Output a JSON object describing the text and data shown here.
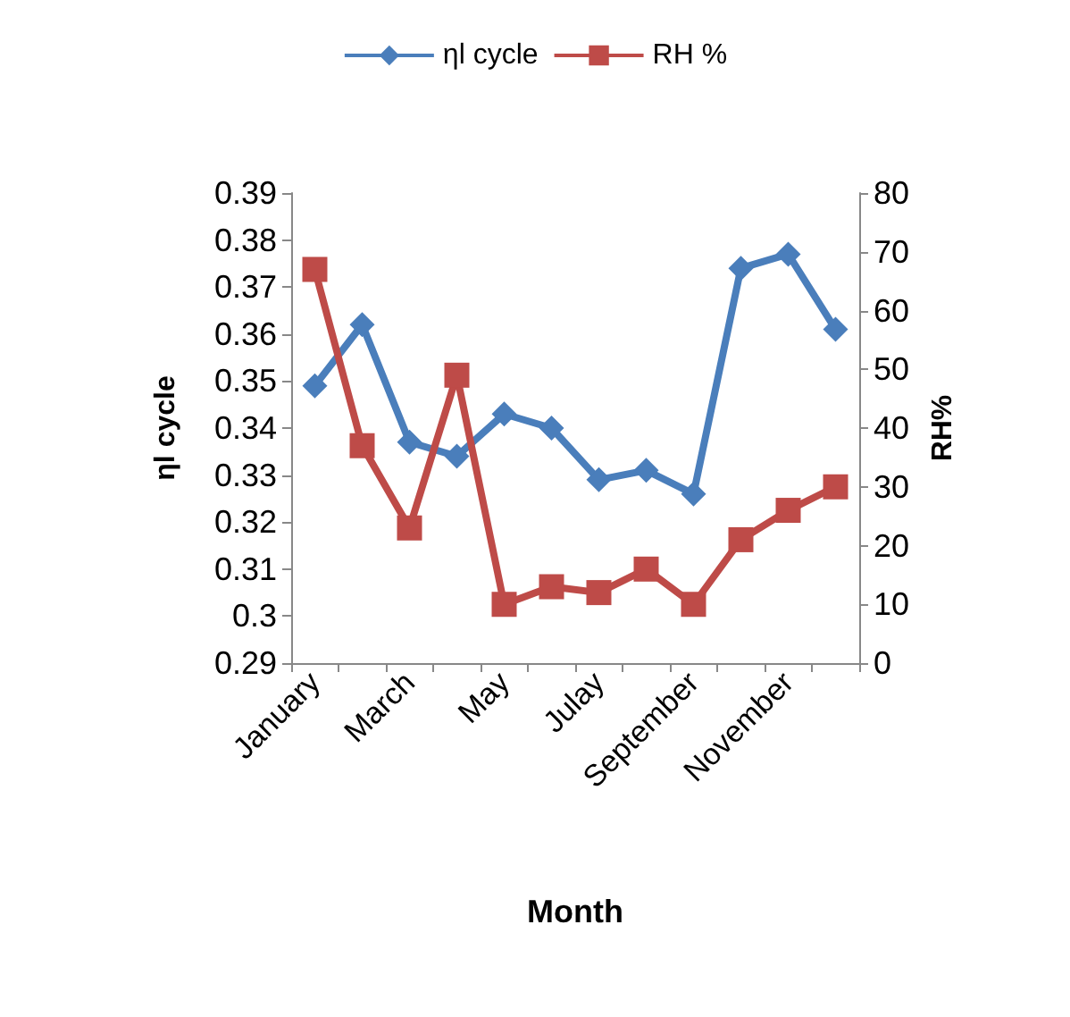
{
  "chart_data": {
    "type": "line",
    "xlabel": "Month",
    "ylabel": "ηl cycle",
    "y2label": "RH%",
    "categories": [
      "January",
      null,
      "March",
      null,
      "May",
      null,
      "Julay",
      null,
      "September",
      null,
      "November",
      null
    ],
    "series": [
      {
        "name": "ηl cycle",
        "color": "#4a7ebb",
        "marker": "diamond",
        "values": [
          0.349,
          0.362,
          0.337,
          0.334,
          0.343,
          0.34,
          0.329,
          0.331,
          0.326,
          0.374,
          0.377,
          0.361
        ]
      },
      {
        "name": "RH %",
        "color": "#be4b48",
        "marker": "square",
        "axis": "y2",
        "values": [
          67,
          37,
          23,
          49,
          10,
          13,
          12,
          16,
          10,
          21,
          26,
          30
        ]
      }
    ],
    "ylim": [
      0.29,
      0.39
    ],
    "yticks": [
      0.29,
      0.3,
      0.31,
      0.32,
      0.33,
      0.34,
      0.35,
      0.36,
      0.37,
      0.38,
      0.39
    ],
    "y2lim": [
      0,
      80
    ],
    "y2ticks": [
      0,
      10,
      20,
      30,
      40,
      50,
      60,
      70,
      80
    ],
    "legend": "top",
    "grid": false
  }
}
